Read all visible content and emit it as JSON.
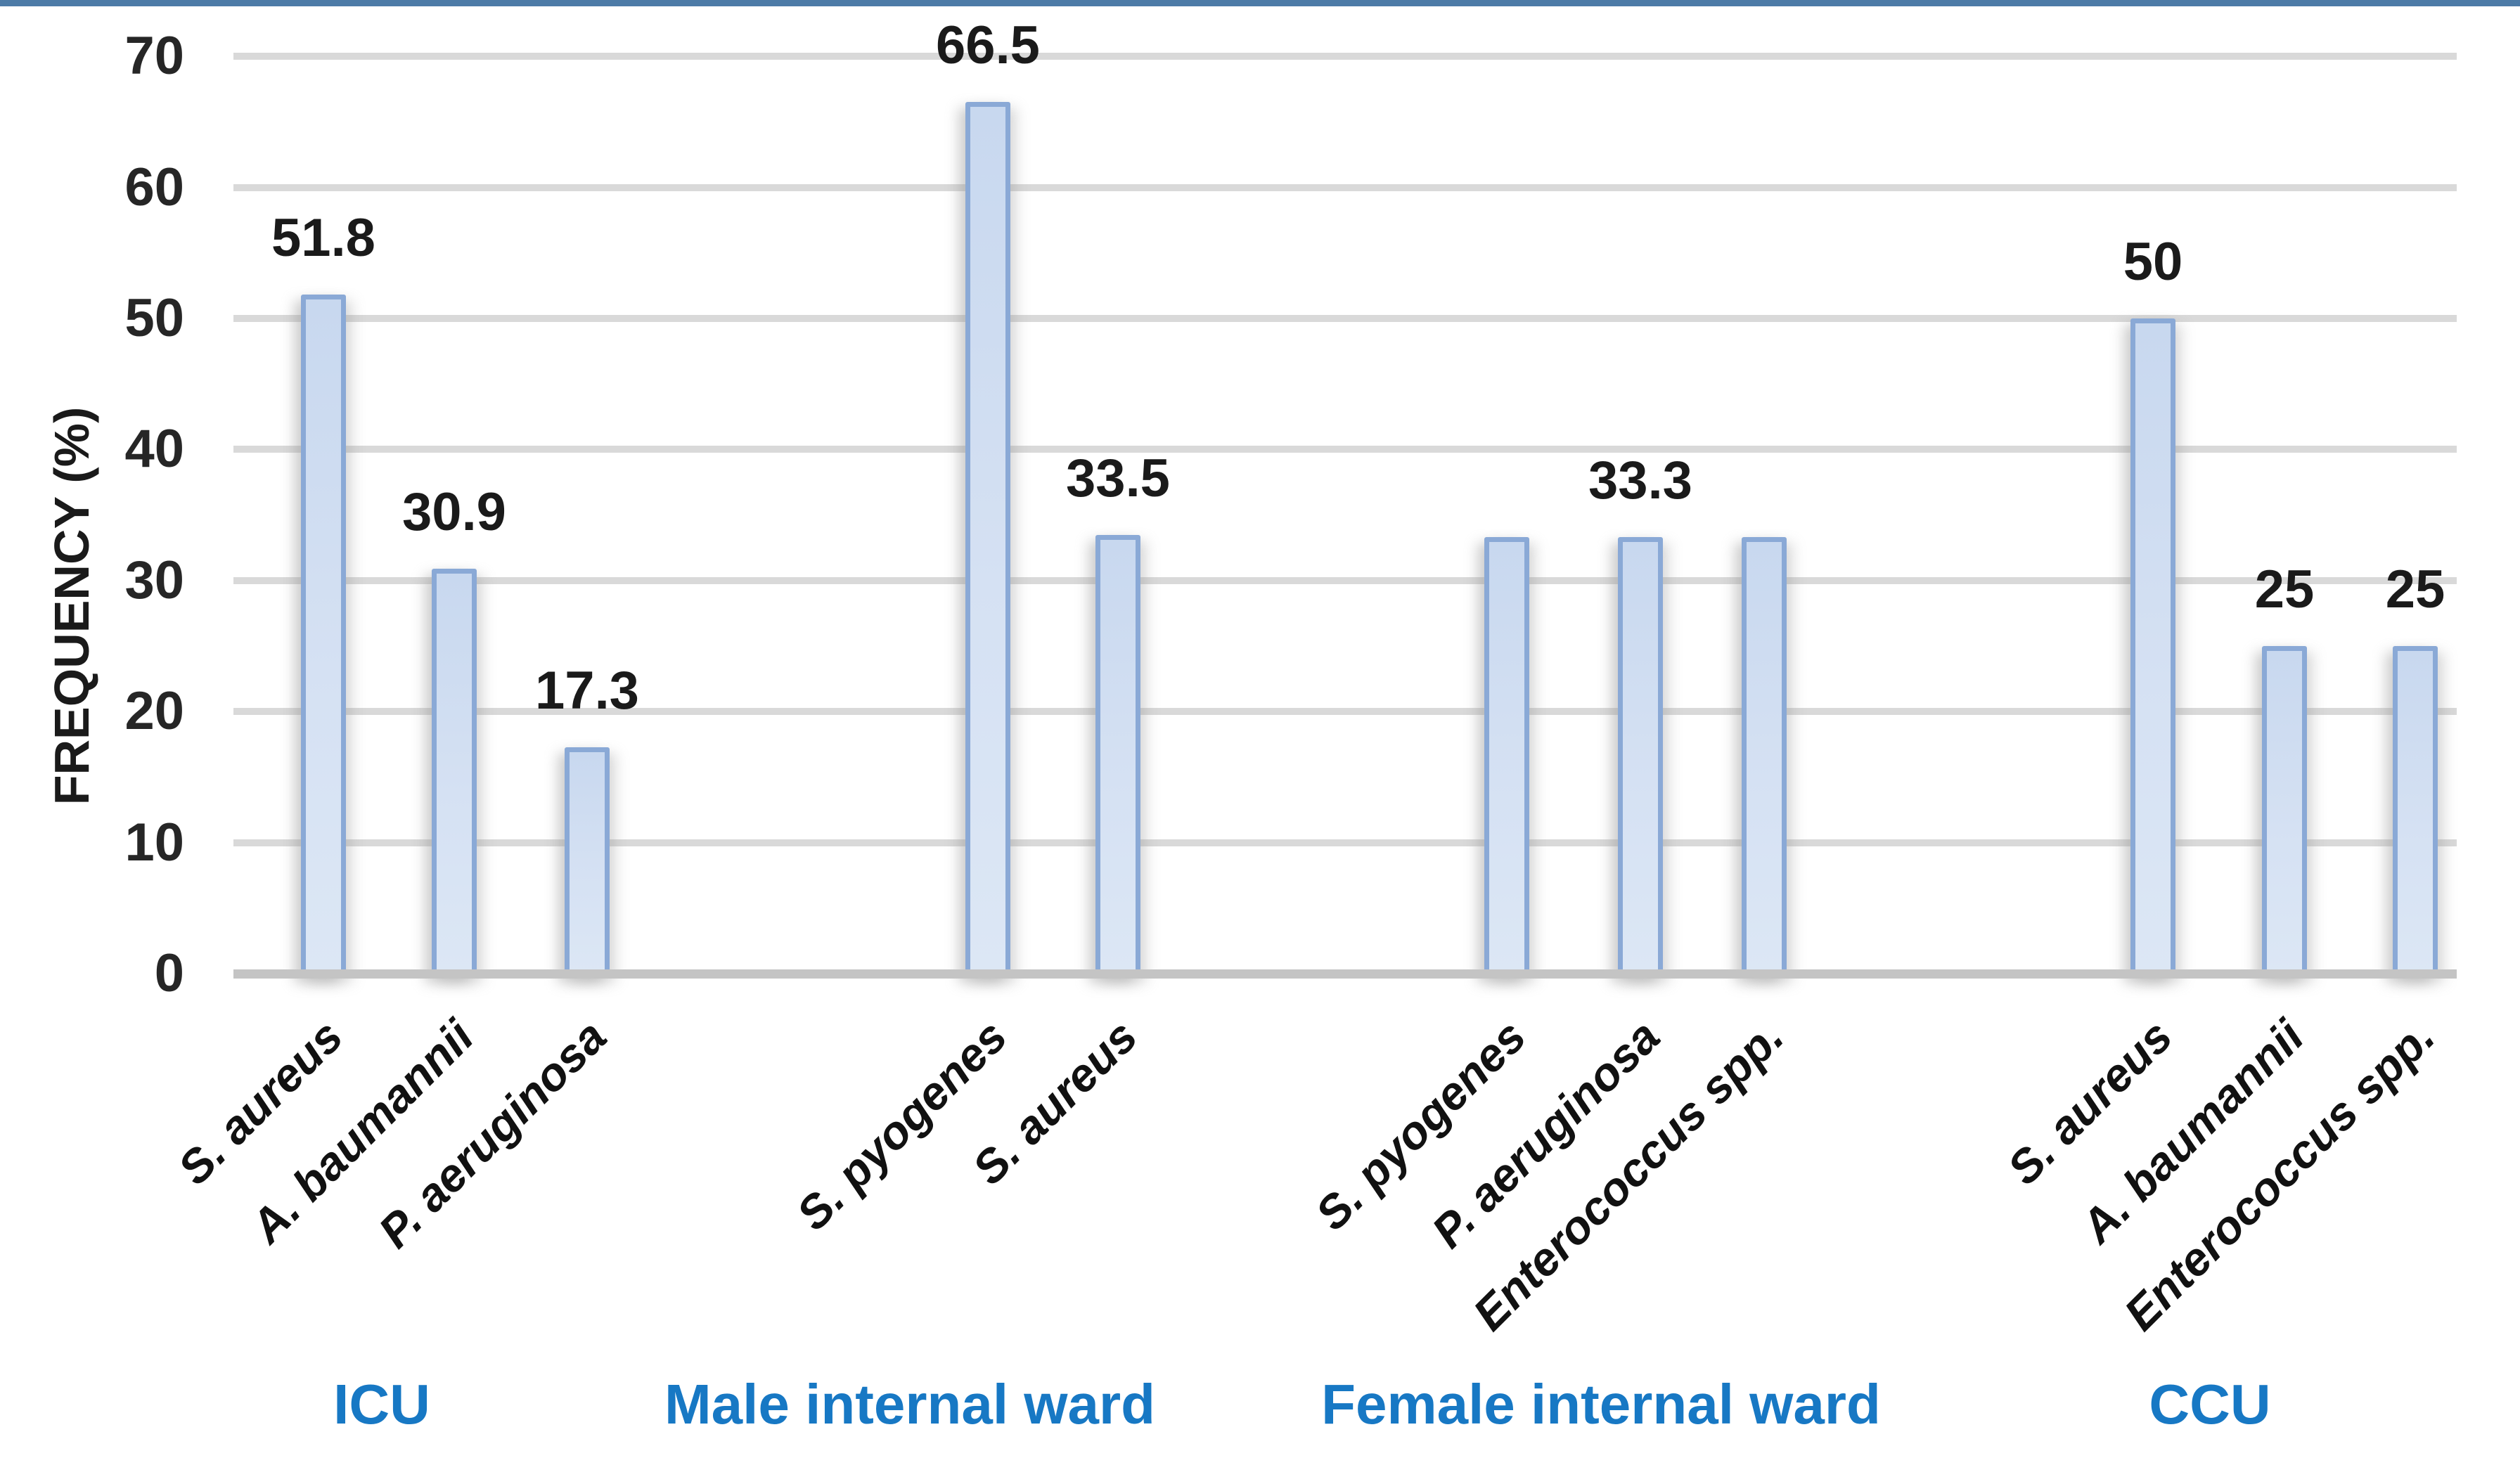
{
  "chart_data": {
    "type": "bar",
    "title": "",
    "xlabel": "",
    "ylabel": "FREQUENCY (%)",
    "ylim": [
      0,
      70
    ],
    "ytick_step": 10,
    "yticks": [
      0,
      10,
      20,
      30,
      40,
      50,
      60,
      70
    ],
    "grid": true,
    "legend_position": "none",
    "groups": [
      {
        "label": "ICU",
        "bars": [
          {
            "category": "S. aureus",
            "value": 51.8,
            "data_label": "51.8"
          },
          {
            "category": "A. baumannii",
            "value": 30.9,
            "data_label": "30.9"
          },
          {
            "category": "P. aeruginosa",
            "value": 17.3,
            "data_label": "17.3"
          }
        ]
      },
      {
        "label": "Male internal ward",
        "bars": [
          {
            "category": "S. pyogenes",
            "value": 66.5,
            "data_label": "66.5"
          },
          {
            "category": "S. aureus",
            "value": 33.5,
            "data_label": "33.5"
          }
        ]
      },
      {
        "label": "Female internal ward",
        "bars": [
          {
            "category": "S. pyogenes",
            "value": 33.3,
            "data_label": ""
          },
          {
            "category": "P. aeruginosa",
            "value": 33.3,
            "data_label": "33.3"
          },
          {
            "category": "Enterococcus spp.",
            "value": 33.3,
            "data_label": ""
          }
        ]
      },
      {
        "label": "CCU",
        "bars": [
          {
            "category": "S. aureus",
            "value": 50,
            "data_label": "50"
          },
          {
            "category": "A. baumannii",
            "value": 25,
            "data_label": "25"
          },
          {
            "category": "Enterococcus spp.",
            "value": 25,
            "data_label": "25"
          }
        ]
      }
    ]
  },
  "colors": {
    "top_accent": "#4d7ba7",
    "frame_border": "#d9d9d9",
    "gridline": "#d9d9d9",
    "axis_line": "#c4c4c4",
    "bar_fill_top": "#c8d8ef",
    "bar_fill_bottom": "#dce7f5",
    "bar_border": "#8aa9d6",
    "tick_text": "#262626",
    "data_label_text": "#1a1a1a",
    "group_label_text": "#1778c4"
  }
}
